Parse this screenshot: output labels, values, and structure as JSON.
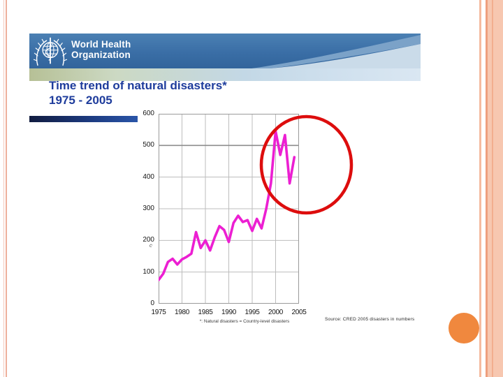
{
  "slide": {
    "header": {
      "who_line1": "World Health",
      "who_line2": "Organization"
    },
    "title_line1": "Time trend of natural disasters*",
    "title_line2": "1975 - 2005",
    "footnote": "*: Natural disasters = Country-level disasters",
    "source": "Source: CRED 2005 disasters in numbers",
    "axis_artifact_mark": "c",
    "colors": {
      "banner_blue": "#3a6ea6",
      "title_blue": "#1e3c9c",
      "line_magenta": "#ec1fd2",
      "annotation_red": "#dd0d0d",
      "orange_dot": "#f0883e"
    }
  },
  "chart_data": {
    "type": "line",
    "title": "Time trend of natural disasters* 1975 - 2005",
    "xlabel": "",
    "ylabel": "",
    "xlim": [
      1975,
      2005
    ],
    "ylim": [
      0,
      600
    ],
    "grid": true,
    "legend": "none",
    "line_color": "#ec1fd2",
    "x_ticks": [
      "1975",
      "1980",
      "1985",
      "1990",
      "1995",
      "2000",
      "2005"
    ],
    "y_ticks": [
      "600",
      "500",
      "400",
      "300",
      "200",
      "100",
      "0"
    ],
    "x": [
      1975,
      1976,
      1977,
      1978,
      1979,
      1980,
      1981,
      1982,
      1983,
      1984,
      1985,
      1986,
      1987,
      1988,
      1989,
      1990,
      1991,
      1992,
      1993,
      1994,
      1995,
      1996,
      1997,
      1998,
      1999,
      2000,
      2001,
      2002,
      2003,
      2004
    ],
    "values": [
      75,
      95,
      132,
      142,
      124,
      140,
      148,
      158,
      226,
      176,
      200,
      168,
      210,
      245,
      233,
      195,
      255,
      278,
      258,
      264,
      230,
      268,
      238,
      300,
      380,
      545,
      470,
      533,
      380,
      463
    ],
    "annotation": "red ellipse highlighting 1999-2005 peak region"
  }
}
